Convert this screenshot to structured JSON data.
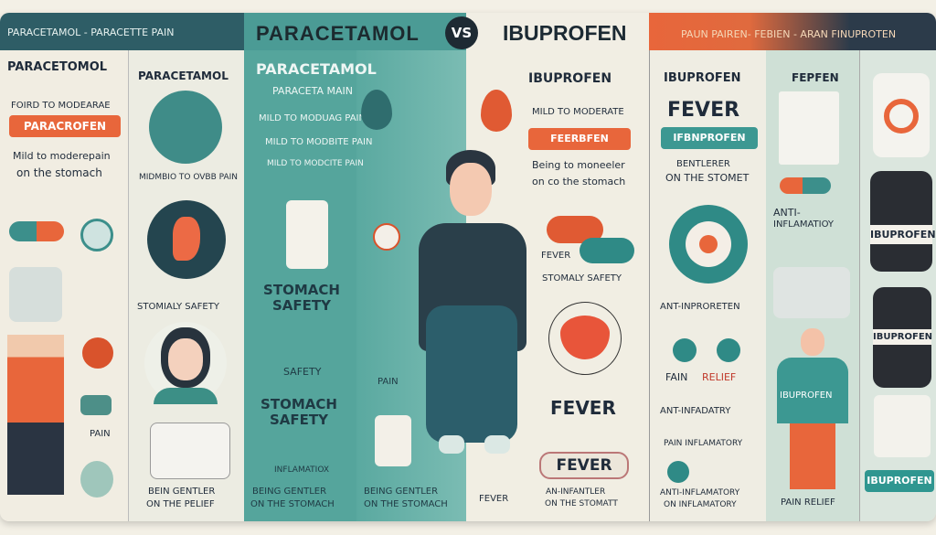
{
  "header": {
    "left_banner": "PARACETAMOL  -  PARACETTE PAIN",
    "center_left_title": "PARACETAMOL",
    "vs": "VS",
    "center_right_title": "IBUPROFEN",
    "right_banner": "PAUN PAIREN- FEBIEN  - ARAN FINUPROTEN"
  },
  "col1": {
    "title": "PARACETOMOL",
    "line1": "FOIRD TO MODEARAE",
    "pill": "PARACROFEN",
    "line2": "Mild to moderepain",
    "line3": "on the stomach",
    "pain": "PAIN"
  },
  "col2": {
    "title": "PARACETAMOL",
    "line1": "MIDMBIO TO OVBB PAIN",
    "line2": "STOMIALY SAFETY",
    "line3": "BEIN GENTLER",
    "line4": "ON THE PELIEF"
  },
  "col3": {
    "title": "PARACETAMOL",
    "line1": "PARACETA MAIN",
    "line2": "MILD TO MODUAG PAIN",
    "line3": "MILD TO MODBITE PAIN",
    "line4": "MILD TO MODCITE PAIN",
    "safety1": "STOMACH SAFETY",
    "safety_small": "SAFETY",
    "safety2": "STOMACH SAFETY",
    "inflam": "INFLAMATIOX",
    "gentle1": "BEING GENTLER",
    "gentle2": "ON THE STOMACH"
  },
  "col4": {
    "pain": "PAIN",
    "gentle1": "BEING GENTLER",
    "gentle2": "ON THE STOMACH"
  },
  "col5": {
    "title": "IBUPROFEN",
    "line1": "MILD TO MODERATE",
    "pill": "FEERBFEN",
    "line2": "Being to moneeler",
    "line3": "on co the stomach",
    "fever_small": "FEVER",
    "safety": "STOMALY SAFETY",
    "fever_big": "FEVER",
    "fever_btn": "FEVER",
    "bottom1": "AN-INFANTLER",
    "bottom2": "ON THE STOMATT",
    "fever_left": "FEVER"
  },
  "col6": {
    "title": "IBUPROFEN",
    "fever": "FEVER",
    "pill": "IFBNPROFEN",
    "gentle1": "BENTLERER",
    "gentle2": "ON THE STOMET",
    "anti1": "ANT-INPROREТEN",
    "relief_a": "FAIN",
    "relief_b": "RELIEF",
    "anti2": "ANT-INFADATRY",
    "anti3": "PAIN INFLAMATORY",
    "anti4": "ANTI-INFLAMATORY",
    "anti5": "ON INFLAMATORY"
  },
  "col7": {
    "title": "FEPFEN",
    "anti1": "ANTI-",
    "anti2": "INFLAMATIOY",
    "shirt": "IBUPROFEN",
    "relief": "PAIN RELIEF"
  },
  "col8": {
    "bottle": "IBUPROFEN",
    "bottle2": "IBUPROFEN",
    "button": "IBUPROFEN"
  },
  "colors": {
    "teal": "#3f8f8b",
    "dark_teal": "#2b5863",
    "orange": "#e8663b",
    "navy": "#1f2b3a",
    "cream": "#efece1"
  }
}
